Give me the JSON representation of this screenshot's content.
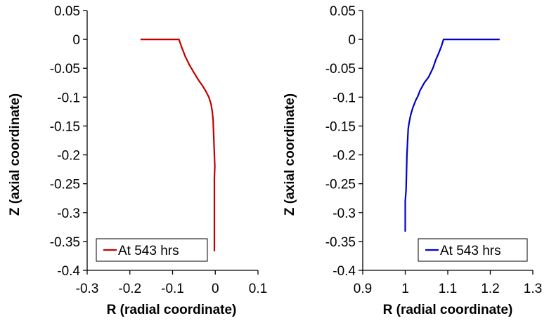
{
  "chart_data": [
    {
      "type": "line",
      "xlabel": "R (radial coordinate)",
      "ylabel": "Z (axial coordinate)",
      "xlim": [
        -0.3,
        0.1
      ],
      "ylim": [
        -0.4,
        0.05
      ],
      "x_ticks": [
        "-0.3",
        "-0.2",
        "-0.1",
        "0",
        "0.1"
      ],
      "y_ticks": [
        "0.05",
        "0",
        "-0.05",
        "-0.1",
        "-0.15",
        "-0.2",
        "-0.25",
        "-0.3",
        "-0.35",
        "-0.4"
      ],
      "grid": false,
      "legend_position": "bottom-left",
      "series": [
        {
          "name": "At 543 hrs",
          "color": "#C00000",
          "points": [
            [
              -0.175,
              0
            ],
            [
              -0.085,
              0
            ],
            [
              -0.078,
              -0.015
            ],
            [
              -0.07,
              -0.03
            ],
            [
              -0.06,
              -0.045
            ],
            [
              -0.048,
              -0.06
            ],
            [
              -0.038,
              -0.072
            ],
            [
              -0.03,
              -0.08
            ],
            [
              -0.022,
              -0.09
            ],
            [
              -0.015,
              -0.1
            ],
            [
              -0.01,
              -0.112
            ],
            [
              -0.007,
              -0.125
            ],
            [
              -0.005,
              -0.14
            ],
            [
              -0.004,
              -0.16
            ],
            [
              -0.003,
              -0.18
            ],
            [
              -0.002,
              -0.2
            ],
            [
              -0.001,
              -0.22
            ],
            [
              -0.002,
              -0.24
            ],
            [
              -0.002,
              -0.26
            ],
            [
              -0.002,
              -0.3
            ],
            [
              -0.002,
              -0.34
            ],
            [
              -0.002,
              -0.367
            ]
          ]
        }
      ]
    },
    {
      "type": "line",
      "xlabel": "R (radial coordinate)",
      "ylabel": "Z (axial coordinate)",
      "xlim": [
        0.9,
        1.3
      ],
      "ylim": [
        -0.4,
        0.05
      ],
      "x_ticks": [
        "0.9",
        "1",
        "1.1",
        "1.2",
        "1.3"
      ],
      "y_ticks": [
        "0.05",
        "0",
        "-0.05",
        "-0.1",
        "-0.15",
        "-0.2",
        "-0.25",
        "-0.3",
        "-0.35",
        "-0.4"
      ],
      "grid": false,
      "legend_position": "bottom-right",
      "series": [
        {
          "name": "At 543 hrs",
          "color": "#0000CC",
          "points": [
            [
              1.222,
              0
            ],
            [
              1.09,
              0
            ],
            [
              1.085,
              -0.012
            ],
            [
              1.078,
              -0.025
            ],
            [
              1.072,
              -0.035
            ],
            [
              1.065,
              -0.05
            ],
            [
              1.055,
              -0.065
            ],
            [
              1.045,
              -0.075
            ],
            [
              1.035,
              -0.088
            ],
            [
              1.03,
              -0.098
            ],
            [
              1.025,
              -0.105
            ],
            [
              1.018,
              -0.118
            ],
            [
              1.013,
              -0.13
            ],
            [
              1.009,
              -0.145
            ],
            [
              1.007,
              -0.155
            ],
            [
              1.006,
              -0.17
            ],
            [
              1.004,
              -0.2
            ],
            [
              1.003,
              -0.23
            ],
            [
              1.002,
              -0.26
            ],
            [
              1.0,
              -0.28
            ],
            [
              1.0,
              -0.3
            ],
            [
              1.0,
              -0.333
            ]
          ]
        }
      ]
    }
  ]
}
